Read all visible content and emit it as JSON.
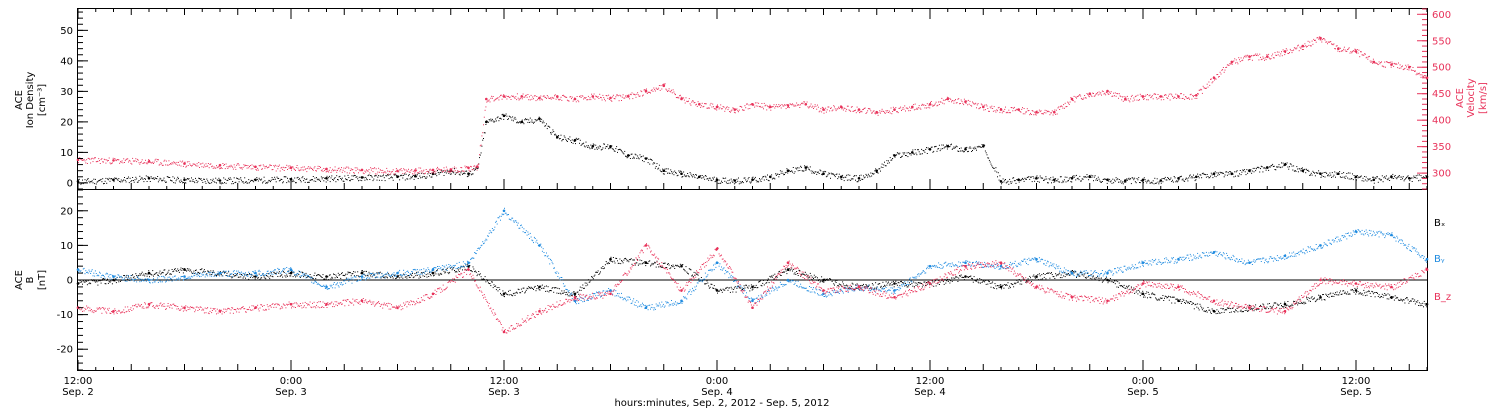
{
  "colors": {
    "density": "#000000",
    "velocity": "#e8325a",
    "bx": "#000000",
    "by": "#1f8be0",
    "bz": "#e8325a"
  },
  "chart_data": [
    {
      "type": "scatter",
      "panel": "top",
      "x_unit": "hours since Sep. 2, 2012 00:00 (axis shows hours:minutes and dates)",
      "xlim": [
        12,
        88
      ],
      "left_axis": {
        "label_lines": [
          "ACE",
          "Ion Density",
          "[cm⁻³]"
        ],
        "ylim": [
          -2,
          57
        ],
        "ticks": [
          0,
          10,
          20,
          30,
          40,
          50
        ]
      },
      "right_axis": {
        "label_lines": [
          "ACE",
          "Velocity",
          "[km/s]"
        ],
        "ylim": [
          270,
          610
        ],
        "ticks": [
          300,
          350,
          400,
          450,
          500,
          550,
          600
        ]
      },
      "series": [
        {
          "name": "Ion Density",
          "axis": "left",
          "color": "#000000",
          "x": [
            12,
            14,
            16,
            18,
            20,
            22,
            24,
            26,
            28,
            30,
            31,
            32,
            33,
            34,
            34.5,
            35,
            36,
            37,
            38,
            39,
            40,
            41,
            42,
            43,
            44,
            45,
            46,
            47,
            48,
            49,
            50,
            51,
            52,
            53,
            54,
            55,
            56,
            57,
            58,
            59,
            60,
            61,
            62,
            63,
            64,
            65,
            66,
            67,
            68,
            69,
            70,
            71,
            72,
            73,
            74,
            75,
            76,
            77,
            78,
            79,
            80,
            81,
            82,
            83,
            84,
            85,
            86,
            87,
            88
          ],
          "y": [
            0.5,
            1,
            1.5,
            1,
            0.8,
            1,
            1.2,
            1.5,
            1.8,
            2,
            2.2,
            3,
            4,
            3,
            5,
            20,
            22,
            20,
            21,
            15,
            14,
            12,
            12,
            9,
            8,
            4,
            3,
            2,
            1,
            0.8,
            1,
            2,
            4,
            5,
            3,
            2,
            1.5,
            4,
            9,
            10,
            11,
            12,
            11,
            12,
            0.5,
            1,
            1.5,
            1,
            1.5,
            2,
            1,
            0.8,
            1,
            0.8,
            1.5,
            2,
            3,
            3,
            4,
            5,
            6,
            4,
            3,
            3,
            2,
            1,
            2,
            1.5,
            2
          ]
        },
        {
          "name": "Velocity",
          "axis": "right",
          "color": "#e8325a",
          "x": [
            12,
            14,
            16,
            18,
            20,
            22,
            24,
            26,
            28,
            30,
            31,
            32,
            33,
            34,
            34.5,
            35,
            36,
            37,
            38,
            39,
            40,
            41,
            42,
            43,
            44,
            45,
            46,
            47,
            48,
            49,
            50,
            51,
            52,
            53,
            54,
            55,
            56,
            57,
            58,
            59,
            60,
            61,
            62,
            63,
            64,
            65,
            66,
            67,
            68,
            69,
            70,
            71,
            72,
            73,
            74,
            75,
            76,
            77,
            78,
            79,
            80,
            81,
            82,
            83,
            84,
            85,
            86,
            87,
            88
          ],
          "y": [
            325,
            324,
            322,
            318,
            315,
            312,
            310,
            308,
            306,
            304,
            305,
            306,
            307,
            310,
            312,
            440,
            445,
            445,
            442,
            445,
            440,
            445,
            442,
            445,
            455,
            465,
            440,
            430,
            425,
            420,
            430,
            425,
            428,
            430,
            420,
            425,
            420,
            415,
            420,
            425,
            430,
            440,
            435,
            425,
            420,
            420,
            415,
            415,
            440,
            450,
            455,
            440,
            445,
            445,
            445,
            447,
            480,
            510,
            520,
            520,
            530,
            540,
            555,
            535,
            530,
            510,
            505,
            500,
            480
          ]
        }
      ]
    },
    {
      "type": "scatter",
      "panel": "bottom",
      "x_unit": "hours since Sep. 2, 2012 00:00 (axis shows hours:minutes and dates)",
      "xlim": [
        12,
        88
      ],
      "left_axis": {
        "label_lines": [
          "ACE",
          "B",
          "[nT]"
        ],
        "ylim": [
          -26,
          26
        ],
        "ticks": [
          -20,
          -10,
          0,
          10,
          20
        ]
      },
      "zero_line": 0,
      "legend": {
        "placement": "right",
        "entries": [
          {
            "text": "Bₓ",
            "color": "#000000"
          },
          {
            "text": "Bᵧ",
            "color": "#1f8be0"
          },
          {
            "text": "B_z",
            "color": "#e8325a"
          }
        ]
      },
      "series": [
        {
          "name": "Bₓ",
          "color": "#000000",
          "x": [
            12,
            14,
            16,
            18,
            20,
            22,
            24,
            26,
            28,
            30,
            32,
            34,
            36,
            38,
            40,
            42,
            44,
            46,
            48,
            50,
            52,
            54,
            56,
            58,
            60,
            62,
            64,
            66,
            68,
            70,
            72,
            74,
            76,
            78,
            80,
            82,
            84,
            86,
            88
          ],
          "y": [
            -1,
            0,
            2,
            3,
            2,
            1,
            2,
            1,
            2,
            1,
            2,
            4,
            -4,
            -2,
            -4,
            6,
            5,
            4,
            -3,
            -2,
            3,
            0,
            -2,
            -1,
            -1,
            1,
            -2,
            1,
            2,
            0,
            -4,
            -6,
            -9,
            -8,
            -7,
            -5,
            -3,
            -5,
            -7
          ]
        },
        {
          "name": "Bᵧ",
          "color": "#1f8be0",
          "x": [
            12,
            14,
            16,
            18,
            20,
            22,
            24,
            26,
            28,
            30,
            32,
            34,
            36,
            38,
            40,
            42,
            44,
            46,
            48,
            50,
            52,
            54,
            56,
            58,
            60,
            62,
            64,
            66,
            68,
            70,
            72,
            74,
            76,
            78,
            80,
            82,
            84,
            86,
            88
          ],
          "y": [
            3,
            1,
            0,
            1,
            2,
            2,
            3,
            -2,
            1,
            2,
            3,
            5,
            20,
            10,
            -6,
            -3,
            -8,
            -6,
            5,
            -6,
            0,
            -4,
            -2,
            -3,
            4,
            5,
            4,
            6,
            2,
            2,
            5,
            6,
            8,
            5,
            7,
            10,
            14,
            13,
            6
          ]
        },
        {
          "name": "B_z",
          "color": "#e8325a",
          "x": [
            12,
            14,
            16,
            18,
            20,
            22,
            24,
            26,
            28,
            30,
            32,
            34,
            36,
            38,
            40,
            42,
            44,
            46,
            48,
            50,
            52,
            54,
            56,
            58,
            60,
            62,
            64,
            66,
            68,
            70,
            72,
            74,
            76,
            78,
            80,
            82,
            84,
            86,
            88
          ],
          "y": [
            -8,
            -9,
            -7,
            -8,
            -9,
            -8,
            -7,
            -7,
            -6,
            -8,
            -4,
            3,
            -15,
            -9,
            -5,
            -4,
            10,
            -3,
            9,
            -8,
            5,
            -3,
            -2,
            -5,
            -1,
            4,
            5,
            -2,
            -5,
            -6,
            -1,
            -2,
            -6,
            -8,
            -9,
            0,
            -1,
            -2,
            3
          ]
        }
      ]
    },
    {
      "type": "axis",
      "role": "shared-x",
      "ticks": [
        {
          "x": 12,
          "time": "12:00",
          "date": "Sep. 2"
        },
        {
          "x": 24,
          "time": "0:00",
          "date": "Sep. 3"
        },
        {
          "x": 36,
          "time": "12:00",
          "date": "Sep. 3"
        },
        {
          "x": 48,
          "time": "0:00",
          "date": "Sep. 4"
        },
        {
          "x": 60,
          "time": "12:00",
          "date": "Sep. 4"
        },
        {
          "x": 72,
          "time": "0:00",
          "date": "Sep. 5"
        },
        {
          "x": 84,
          "time": "12:00",
          "date": "Sep. 5"
        }
      ],
      "xlabel": "hours:minutes, Sep.  2, 2012 - Sep.  5, 2012"
    }
  ]
}
